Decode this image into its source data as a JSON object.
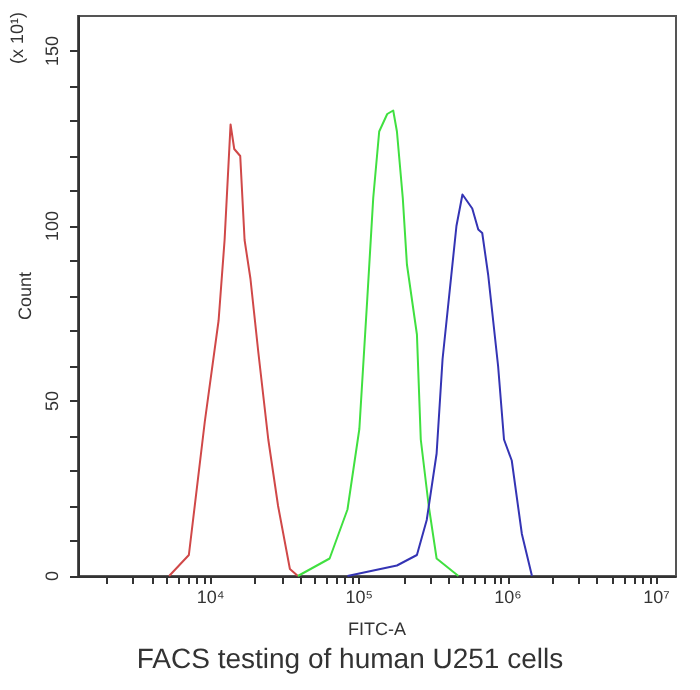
{
  "chart_data": {
    "type": "line",
    "title": "FACS testing of human U251 cells",
    "xlabel": "FITC-A",
    "ylabel": "Count",
    "annotations": [
      "(x 10¹)"
    ],
    "log": "x",
    "grid": false,
    "marker": "none",
    "line_style": "solid",
    "xlim": [
      1280,
      13500000
    ],
    "ylim": [
      0,
      160
    ],
    "xticks": [
      {
        "value": 2000,
        "label": null
      },
      {
        "value": 3000,
        "label": null
      },
      {
        "value": 4000,
        "label": null
      },
      {
        "value": 5000,
        "label": null
      },
      {
        "value": 6000,
        "label": null
      },
      {
        "value": 7000,
        "label": null
      },
      {
        "value": 8000,
        "label": null
      },
      {
        "value": 9000,
        "label": null
      },
      {
        "value": 10000,
        "label": "10⁴"
      },
      {
        "value": 20000,
        "label": null
      },
      {
        "value": 30000,
        "label": null
      },
      {
        "value": 40000,
        "label": null
      },
      {
        "value": 50000,
        "label": null
      },
      {
        "value": 60000,
        "label": null
      },
      {
        "value": 70000,
        "label": null
      },
      {
        "value": 80000,
        "label": null
      },
      {
        "value": 90000,
        "label": null
      },
      {
        "value": 100000,
        "label": "10⁵"
      },
      {
        "value": 200000,
        "label": null
      },
      {
        "value": 300000,
        "label": null
      },
      {
        "value": 400000,
        "label": null
      },
      {
        "value": 500000,
        "label": null
      },
      {
        "value": 600000,
        "label": null
      },
      {
        "value": 700000,
        "label": null
      },
      {
        "value": 800000,
        "label": null
      },
      {
        "value": 900000,
        "label": null
      },
      {
        "value": 1000000,
        "label": "10⁶"
      },
      {
        "value": 2000000,
        "label": null
      },
      {
        "value": 3000000,
        "label": null
      },
      {
        "value": 4000000,
        "label": null
      },
      {
        "value": 5000000,
        "label": null
      },
      {
        "value": 6000000,
        "label": null
      },
      {
        "value": 7000000,
        "label": null
      },
      {
        "value": 8000000,
        "label": null
      },
      {
        "value": 9000000,
        "label": null
      },
      {
        "value": 10000000,
        "label": "10⁷"
      }
    ],
    "yticks": [
      0,
      {
        "value": 10,
        "label": null
      },
      {
        "value": 20,
        "label": null
      },
      {
        "value": 30,
        "label": null
      },
      {
        "value": 40,
        "label": null
      },
      50,
      {
        "value": 60,
        "label": null
      },
      {
        "value": 70,
        "label": null
      },
      {
        "value": 80,
        "label": null
      },
      {
        "value": 90,
        "label": null
      },
      100,
      {
        "value": 110,
        "label": null
      },
      {
        "value": 120,
        "label": null
      },
      {
        "value": 130,
        "label": null
      },
      {
        "value": 140,
        "label": null
      },
      150
    ],
    "series": [
      {
        "color": "#d04848",
        "x": [
          5250,
          7130,
          9120,
          11300,
          12400,
          13600,
          14400,
          15800,
          16900,
          18500,
          20900,
          24400,
          28400,
          34100,
          38600
        ],
        "values": [
          0,
          6,
          44,
          73,
          96,
          129,
          122,
          120,
          96,
          85,
          64,
          39,
          20,
          2,
          0
        ]
      },
      {
        "color": "#40e040",
        "x": [
          38600,
          63100,
          83200,
          100000,
          113000,
          124000,
          136000,
          154000,
          169000,
          179000,
          196000,
          209000,
          244000,
          259000,
          293000,
          331000,
          464000
        ],
        "values": [
          0,
          5,
          19,
          42,
          79,
          108,
          127,
          132,
          133,
          127,
          108,
          89,
          69,
          39,
          20,
          5,
          0
        ]
      },
      {
        "color": "#3434b4",
        "x": [
          83200,
          179000,
          244000,
          284000,
          331000,
          363000,
          450000,
          494000,
          575000,
          631000,
          671000,
          736000,
          858000,
          940000,
          1060000,
          1240000,
          1450000
        ],
        "values": [
          0,
          3,
          6,
          16,
          35,
          62,
          100,
          109,
          105,
          99,
          98,
          86,
          60,
          39,
          33,
          12,
          0
        ]
      }
    ]
  }
}
